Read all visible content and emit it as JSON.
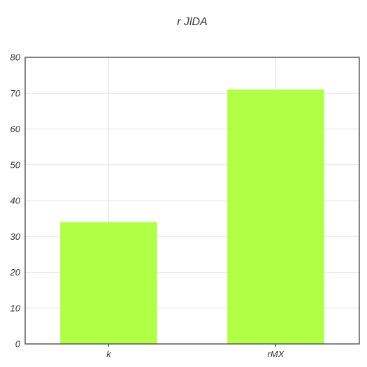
{
  "chart_data": {
    "type": "bar",
    "title": "r JlDA",
    "xlabel": "",
    "ylabel": "",
    "categories": [
      "k",
      "rMX"
    ],
    "values": [
      34,
      71
    ],
    "ylim": [
      0,
      80
    ],
    "yticks": [
      0,
      10,
      20,
      30,
      40,
      50,
      60,
      70,
      80
    ],
    "grid": true,
    "bar_color": "#b2ff47",
    "axis_color": "#333333",
    "grid_color": "#e3e3e3"
  }
}
